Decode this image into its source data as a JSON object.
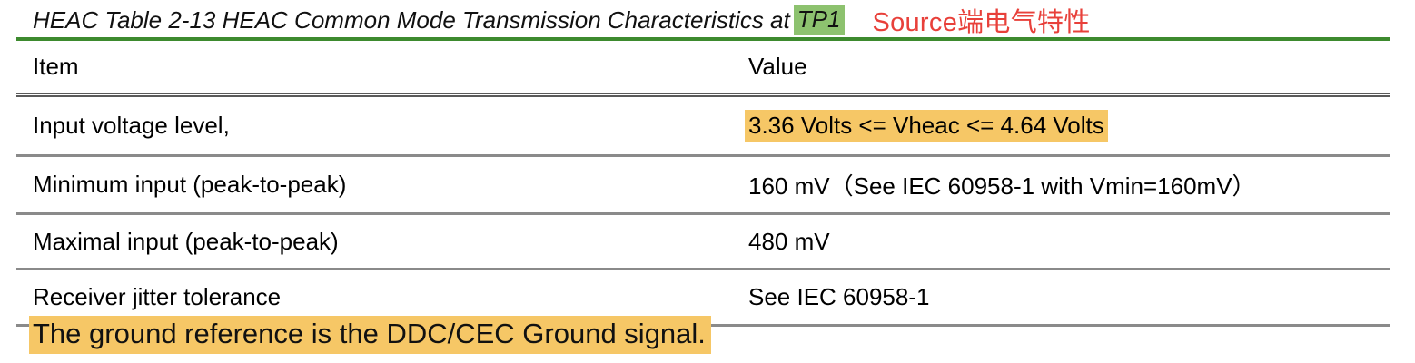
{
  "caption": {
    "text": "HEAC Table 2-13 HEAC Common Mode Transmission Characteristics at",
    "tp_label": "TP1",
    "note": "Source端电气特性"
  },
  "table": {
    "headers": {
      "item": "Item",
      "value": "Value"
    },
    "rows": [
      {
        "item": "Input voltage level,",
        "value": "3.36 Volts <= Vheac <= 4.64 Volts"
      },
      {
        "item": "Minimum input (peak-to-peak)",
        "value": "160 mV（See IEC 60958-1 with Vmin=160mV）"
      },
      {
        "item": "Maximal input (peak-to-peak)",
        "value": "480 mV"
      },
      {
        "item": "Receiver jitter tolerance",
        "value": "See IEC 60958-1"
      }
    ]
  },
  "footnote": "The ground reference is the DDC/CEC Ground signal.",
  "colors": {
    "caption_rule": "#3d8a2e",
    "tp_highlight": "#8dc26f",
    "note_text": "#e8403a",
    "value_highlight": "#f6c766"
  }
}
